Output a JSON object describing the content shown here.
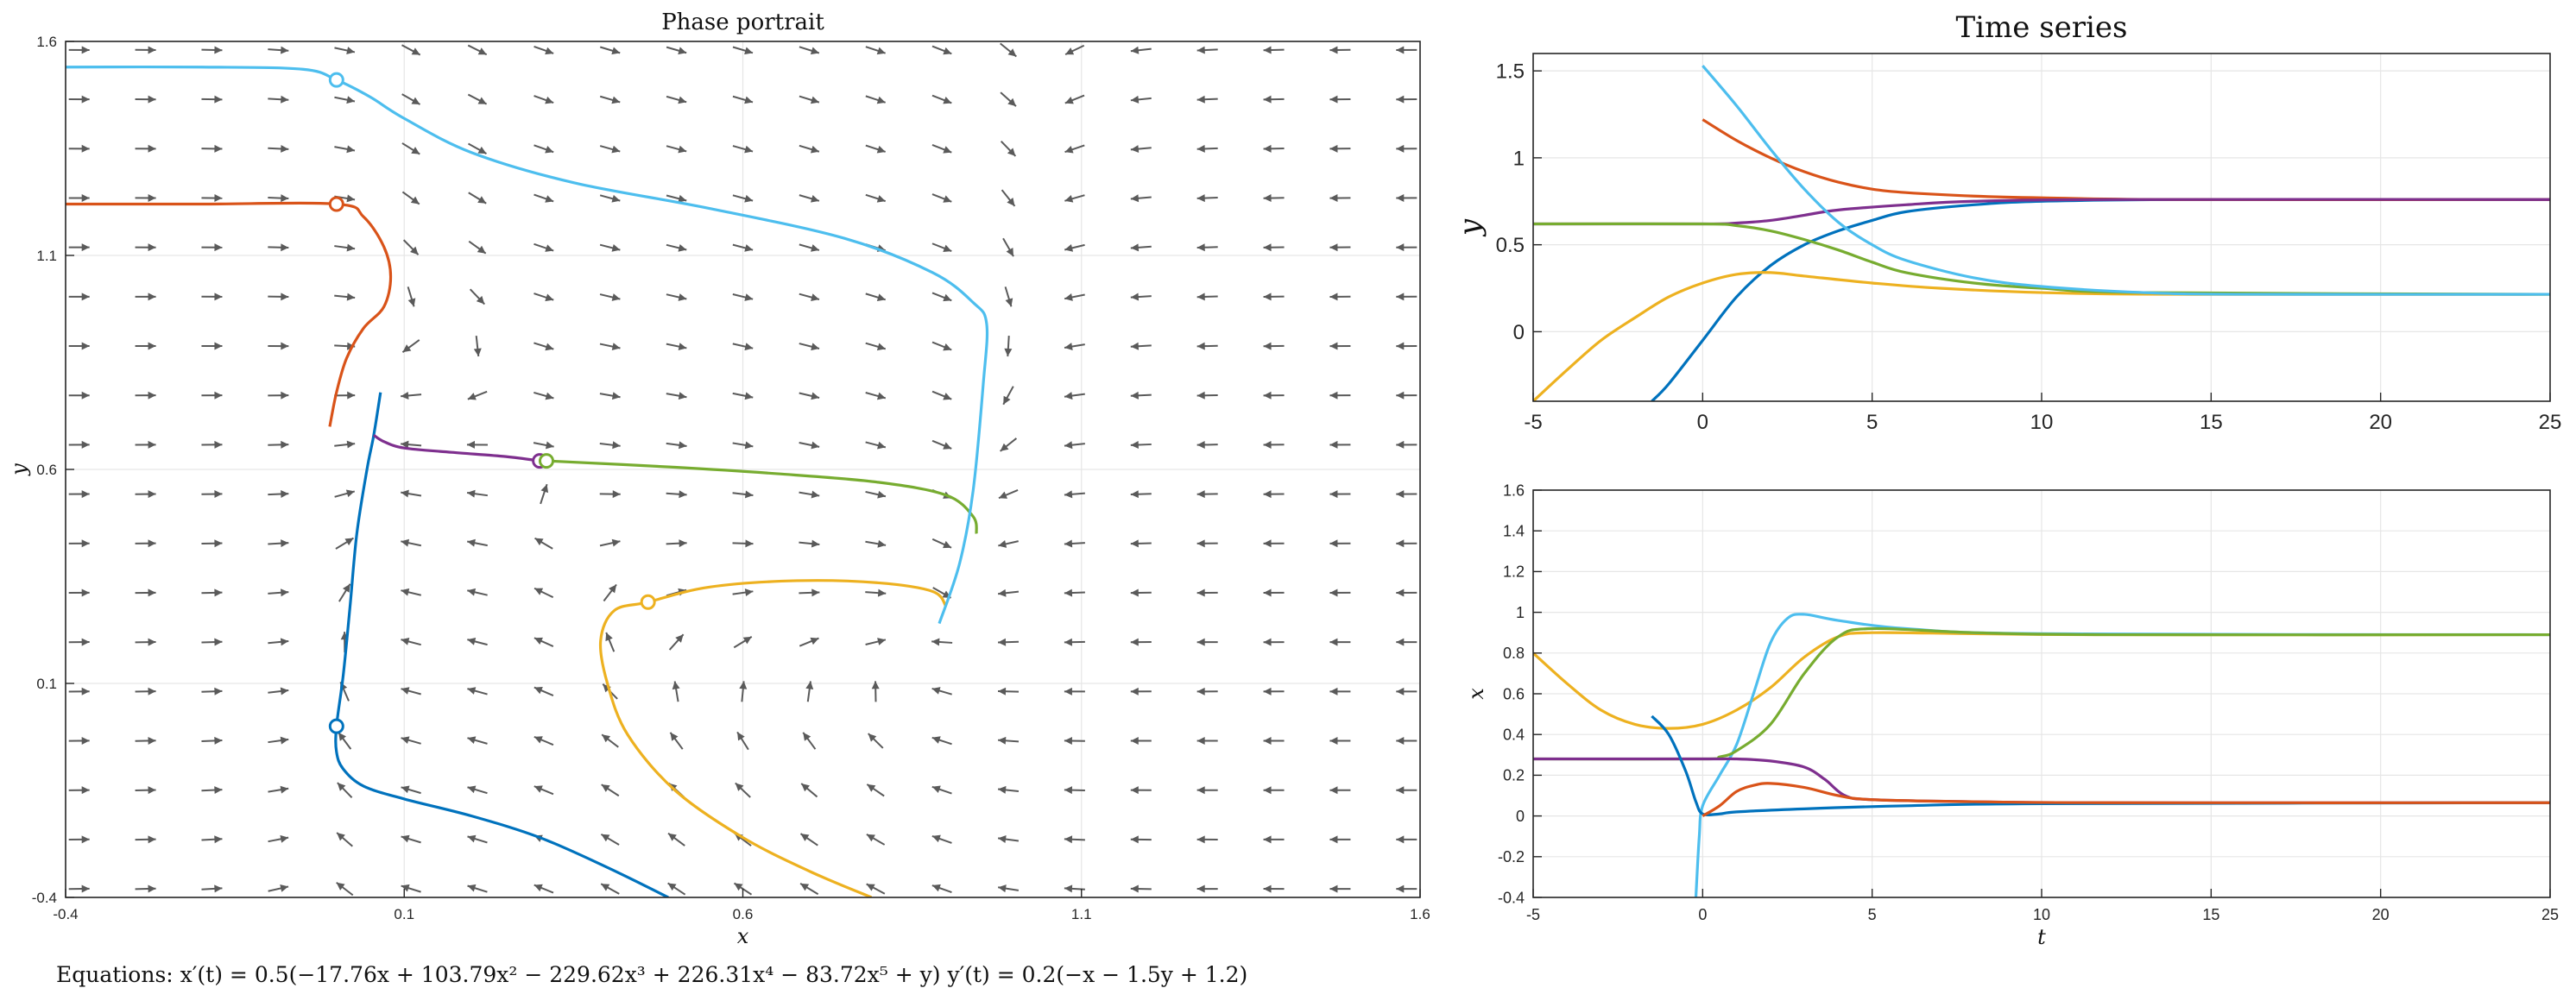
{
  "colors": {
    "blue": "#0072BD",
    "orange": "#D95319",
    "yellow": "#EDB120",
    "purple": "#7E2F8E",
    "green": "#77AC30",
    "cyan": "#4DBEEE",
    "arrow": "#5a5a5a"
  },
  "equations": "Equations:  x′(t) = 0.5(−17.76x + 103.79x² − 229.62x³ + 226.31x⁴ − 83.72x⁵ + y)        y′(t) = 0.2(−x − 1.5y + 1.2)",
  "chart_data": [
    {
      "type": "line",
      "title": "Phase portrait",
      "xlabel": "x",
      "ylabel": "y",
      "xlim": [
        -0.4,
        1.6
      ],
      "ylim": [
        -0.4,
        1.6
      ],
      "xticks": [
        "-0.4",
        "0.1",
        "0.6",
        "1.1",
        "1.6"
      ],
      "yticks": [
        "-0.4",
        "0.1",
        "0.6",
        "1.1",
        "1.6"
      ],
      "grid": true,
      "vector_field": {
        "x_range": [
          -0.4,
          1.6
        ],
        "y_range": [
          -0.4,
          1.6
        ],
        "nx": 21,
        "ny": 18,
        "fx": "0.5*(-17.76x+103.79x^2-229.62x^3+226.31x^4-83.72x^5+y)",
        "fy": "0.2*(-x-1.5y+1.2)"
      },
      "series": [
        {
          "color": "blue",
          "start_marker": [
            0.0,
            0.0
          ],
          "points": [
            [
              0.49,
              -0.4
            ],
            [
              0.4,
              -0.33
            ],
            [
              0.3,
              -0.26
            ],
            [
              0.2,
              -0.21
            ],
            [
              0.1,
              -0.17
            ],
            [
              0.04,
              -0.14
            ],
            [
              0.01,
              -0.1
            ],
            [
              0.0,
              -0.06
            ],
            [
              0.0,
              0.0
            ],
            [
              0.01,
              0.12
            ],
            [
              0.02,
              0.28
            ],
            [
              0.03,
              0.45
            ],
            [
              0.045,
              0.6
            ],
            [
              0.055,
              0.68
            ],
            [
              0.065,
              0.78
            ]
          ]
        },
        {
          "color": "orange",
          "start_marker": [
            0.0,
            1.22
          ],
          "points": [
            [
              -0.4,
              1.22
            ],
            [
              -0.2,
              1.22
            ],
            [
              0.0,
              1.22
            ],
            [
              0.04,
              1.19
            ],
            [
              0.07,
              1.12
            ],
            [
              0.08,
              1.05
            ],
            [
              0.07,
              0.98
            ],
            [
              0.04,
              0.93
            ],
            [
              0.015,
              0.86
            ],
            [
              0.0,
              0.78
            ],
            [
              -0.01,
              0.7
            ]
          ]
        },
        {
          "color": "purple",
          "start_marker": [
            0.3,
            0.62
          ],
          "points": [
            [
              0.3,
              0.62
            ],
            [
              0.25,
              0.63
            ],
            [
              0.17,
              0.64
            ],
            [
              0.1,
              0.65
            ],
            [
              0.07,
              0.665
            ],
            [
              0.055,
              0.68
            ]
          ]
        },
        {
          "color": "green",
          "start_marker": [
            0.31,
            0.62
          ],
          "points": [
            [
              0.31,
              0.62
            ],
            [
              0.5,
              0.605
            ],
            [
              0.65,
              0.59
            ],
            [
              0.8,
              0.57
            ],
            [
              0.9,
              0.54
            ],
            [
              0.94,
              0.49
            ],
            [
              0.945,
              0.45
            ]
          ]
        },
        {
          "color": "yellow",
          "start_marker": [
            0.46,
            0.29
          ],
          "points": [
            [
              0.79,
              -0.4
            ],
            [
              0.7,
              -0.34
            ],
            [
              0.6,
              -0.26
            ],
            [
              0.5,
              -0.15
            ],
            [
              0.43,
              -0.02
            ],
            [
              0.4,
              0.1
            ],
            [
              0.39,
              0.2
            ],
            [
              0.41,
              0.27
            ],
            [
              0.46,
              0.29
            ],
            [
              0.55,
              0.325
            ],
            [
              0.68,
              0.34
            ],
            [
              0.8,
              0.335
            ],
            [
              0.88,
              0.315
            ],
            [
              0.9,
              0.28
            ]
          ]
        },
        {
          "color": "cyan",
          "start_marker": [
            0.0,
            1.51
          ],
          "points": [
            [
              -0.4,
              1.54
            ],
            [
              -0.2,
              1.54
            ],
            [
              -0.05,
              1.535
            ],
            [
              0.0,
              1.51
            ],
            [
              0.05,
              1.47
            ],
            [
              0.1,
              1.42
            ],
            [
              0.2,
              1.34
            ],
            [
              0.35,
              1.27
            ],
            [
              0.55,
              1.21
            ],
            [
              0.75,
              1.14
            ],
            [
              0.88,
              1.06
            ],
            [
              0.94,
              0.99
            ],
            [
              0.96,
              0.94
            ],
            [
              0.955,
              0.8
            ],
            [
              0.94,
              0.55
            ],
            [
              0.92,
              0.38
            ],
            [
              0.89,
              0.24
            ]
          ]
        }
      ]
    },
    {
      "type": "line",
      "title": "Time series",
      "xlabel": "",
      "ylabel": "y",
      "xlim": [
        -5,
        25
      ],
      "ylim": [
        -0.4,
        1.6
      ],
      "xticks": [
        "-5",
        "0",
        "5",
        "10",
        "15",
        "20",
        "25"
      ],
      "yticks": [
        "0",
        "0.5",
        "1",
        "1.5"
      ],
      "grid": true,
      "series": [
        {
          "color": "blue",
          "points": [
            [
              -1.5,
              -0.4
            ],
            [
              -1,
              -0.3
            ],
            [
              0,
              -0.05
            ],
            [
              1,
              0.2
            ],
            [
              2,
              0.38
            ],
            [
              3,
              0.5
            ],
            [
              4,
              0.58
            ],
            [
              5,
              0.64
            ],
            [
              6,
              0.69
            ],
            [
              8,
              0.73
            ],
            [
              10,
              0.75
            ],
            [
              14,
              0.76
            ],
            [
              25,
              0.76
            ]
          ]
        },
        {
          "color": "orange",
          "points": [
            [
              0,
              1.22
            ],
            [
              1,
              1.1
            ],
            [
              2,
              1.0
            ],
            [
              3,
              0.92
            ],
            [
              4,
              0.86
            ],
            [
              5,
              0.82
            ],
            [
              6,
              0.8
            ],
            [
              8,
              0.78
            ],
            [
              10,
              0.77
            ],
            [
              14,
              0.76
            ],
            [
              25,
              0.76
            ]
          ]
        },
        {
          "color": "yellow",
          "points": [
            [
              -5,
              -0.4
            ],
            [
              -4,
              -0.22
            ],
            [
              -3,
              -0.05
            ],
            [
              -2,
              0.08
            ],
            [
              -1,
              0.2
            ],
            [
              0,
              0.28
            ],
            [
              1,
              0.33
            ],
            [
              2,
              0.34
            ],
            [
              3,
              0.32
            ],
            [
              5,
              0.28
            ],
            [
              7,
              0.25
            ],
            [
              10,
              0.225
            ],
            [
              14,
              0.215
            ],
            [
              25,
              0.215
            ]
          ]
        },
        {
          "color": "purple",
          "points": [
            [
              -5,
              0.62
            ],
            [
              0,
              0.62
            ],
            [
              1,
              0.625
            ],
            [
              2,
              0.64
            ],
            [
              3,
              0.67
            ],
            [
              4,
              0.7
            ],
            [
              6,
              0.73
            ],
            [
              8,
              0.75
            ],
            [
              12,
              0.76
            ],
            [
              25,
              0.76
            ]
          ]
        },
        {
          "color": "green",
          "points": [
            [
              -5,
              0.62
            ],
            [
              0,
              0.62
            ],
            [
              1,
              0.61
            ],
            [
              2,
              0.58
            ],
            [
              3,
              0.53
            ],
            [
              4,
              0.47
            ],
            [
              5,
              0.4
            ],
            [
              6,
              0.34
            ],
            [
              8,
              0.28
            ],
            [
              10,
              0.25
            ],
            [
              13,
              0.225
            ],
            [
              25,
              0.215
            ]
          ]
        },
        {
          "color": "cyan",
          "points": [
            [
              0,
              1.53
            ],
            [
              1,
              1.3
            ],
            [
              2,
              1.05
            ],
            [
              3,
              0.82
            ],
            [
              4,
              0.63
            ],
            [
              5,
              0.5
            ],
            [
              6,
              0.41
            ],
            [
              8,
              0.31
            ],
            [
              10,
              0.26
            ],
            [
              13,
              0.225
            ],
            [
              16,
              0.215
            ],
            [
              25,
              0.215
            ]
          ]
        }
      ]
    },
    {
      "type": "line",
      "title": "",
      "xlabel": "t",
      "ylabel": "x",
      "xlim": [
        -5,
        25
      ],
      "ylim": [
        -0.4,
        1.6
      ],
      "xticks": [
        "-5",
        "0",
        "5",
        "10",
        "15",
        "20",
        "25"
      ],
      "yticks": [
        "-0.4",
        "-0.2",
        "0",
        "0.2",
        "0.4",
        "0.6",
        "0.8",
        "1",
        "1.2",
        "1.4",
        "1.6"
      ],
      "grid": true,
      "series": [
        {
          "color": "yellow",
          "points": [
            [
              -5,
              0.8
            ],
            [
              -4,
              0.65
            ],
            [
              -3,
              0.52
            ],
            [
              -2,
              0.45
            ],
            [
              -1,
              0.43
            ],
            [
              0,
              0.45
            ],
            [
              1,
              0.52
            ],
            [
              2,
              0.63
            ],
            [
              3,
              0.78
            ],
            [
              4,
              0.88
            ],
            [
              5,
              0.9
            ],
            [
              8,
              0.895
            ],
            [
              12,
              0.89
            ],
            [
              25,
              0.89
            ]
          ]
        },
        {
          "color": "cyan",
          "points": [
            [
              -0.2,
              -0.4
            ],
            [
              -0.1,
              -0.1
            ],
            [
              0,
              0.05
            ],
            [
              0.5,
              0.2
            ],
            [
              1,
              0.35
            ],
            [
              1.5,
              0.6
            ],
            [
              2,
              0.85
            ],
            [
              2.5,
              0.97
            ],
            [
              3,
              0.99
            ],
            [
              4,
              0.96
            ],
            [
              6,
              0.92
            ],
            [
              10,
              0.895
            ],
            [
              25,
              0.89
            ]
          ]
        },
        {
          "color": "green",
          "points": [
            [
              -5,
              0.28
            ],
            [
              0,
              0.28
            ],
            [
              0.5,
              0.29
            ],
            [
              1,
              0.32
            ],
            [
              2,
              0.45
            ],
            [
              3,
              0.7
            ],
            [
              4,
              0.88
            ],
            [
              5,
              0.92
            ],
            [
              8,
              0.9
            ],
            [
              12,
              0.89
            ],
            [
              25,
              0.89
            ]
          ]
        },
        {
          "color": "purple",
          "points": [
            [
              -5,
              0.28
            ],
            [
              0,
              0.28
            ],
            [
              1,
              0.28
            ],
            [
              2,
              0.27
            ],
            [
              3,
              0.24
            ],
            [
              3.6,
              0.18
            ],
            [
              4.2,
              0.1
            ],
            [
              5,
              0.08
            ],
            [
              8,
              0.07
            ],
            [
              12,
              0.065
            ],
            [
              25,
              0.065
            ]
          ]
        },
        {
          "color": "blue",
          "points": [
            [
              -1.5,
              0.49
            ],
            [
              -1,
              0.4
            ],
            [
              -0.5,
              0.22
            ],
            [
              -0.2,
              0.07
            ],
            [
              0,
              0.01
            ],
            [
              0.5,
              0.01
            ],
            [
              1,
              0.02
            ],
            [
              3,
              0.035
            ],
            [
              6,
              0.05
            ],
            [
              10,
              0.06
            ],
            [
              25,
              0.065
            ]
          ]
        },
        {
          "color": "orange",
          "points": [
            [
              0,
              0.0
            ],
            [
              0.5,
              0.05
            ],
            [
              1,
              0.12
            ],
            [
              1.5,
              0.15
            ],
            [
              2,
              0.16
            ],
            [
              3,
              0.14
            ],
            [
              4,
              0.1
            ],
            [
              5,
              0.08
            ],
            [
              8,
              0.07
            ],
            [
              12,
              0.065
            ],
            [
              25,
              0.065
            ]
          ]
        }
      ]
    }
  ]
}
